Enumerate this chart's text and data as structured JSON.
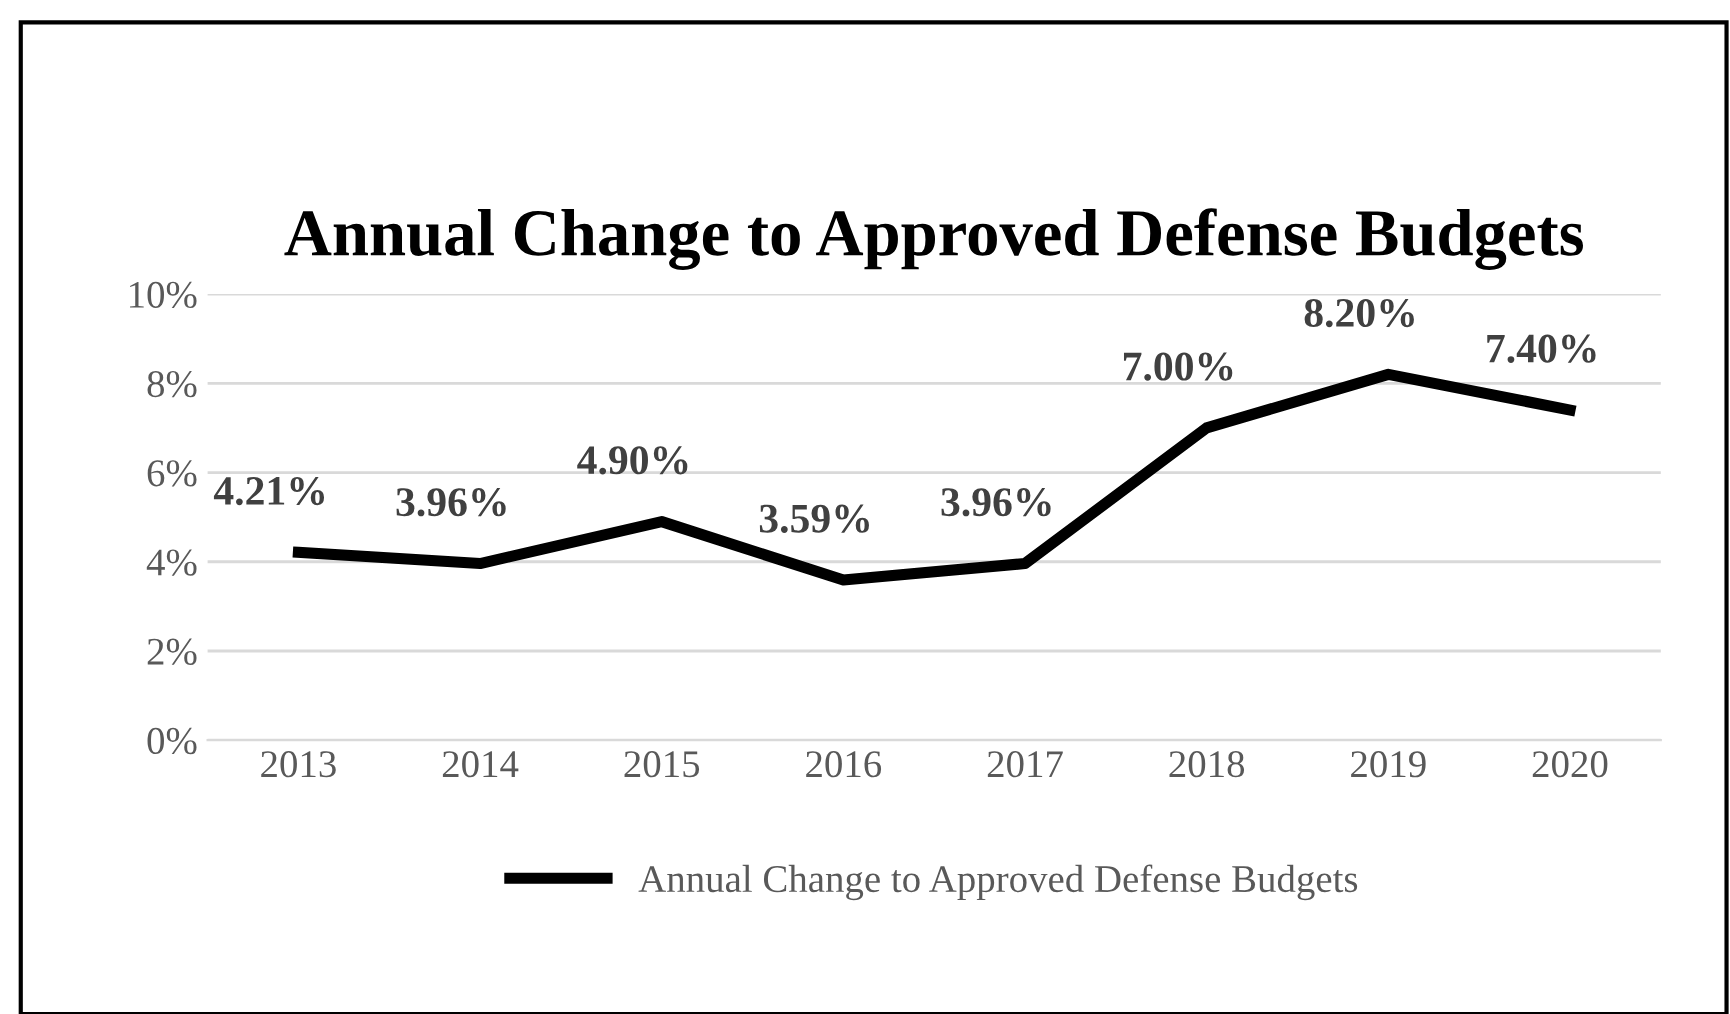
{
  "chart_data": {
    "type": "line",
    "title": "Annual Change to Approved Defense Budgets",
    "categories": [
      "2013",
      "2014",
      "2015",
      "2016",
      "2017",
      "2018",
      "2019",
      "2020"
    ],
    "series": [
      {
        "name": "Annual Change to Approved Defense Budgets",
        "color": "#000000",
        "values": [
          4.21,
          3.96,
          4.9,
          3.59,
          3.96,
          7.0,
          8.2,
          7.4
        ],
        "value_labels": [
          "4.21%",
          "3.96%",
          "4.90%",
          "3.59%",
          "3.96%",
          "7.00%",
          "8.20%",
          "7.40%"
        ]
      }
    ],
    "ylim": [
      0,
      10
    ],
    "yticks": [
      {
        "value": 0,
        "label": "0%"
      },
      {
        "value": 2,
        "label": "2%"
      },
      {
        "value": 4,
        "label": "4%"
      },
      {
        "value": 6,
        "label": "6%"
      },
      {
        "value": 8,
        "label": "8%"
      },
      {
        "value": 10,
        "label": "10%"
      }
    ],
    "grid": "y",
    "legend": "bottom",
    "marker": "none",
    "line_style": "solid"
  }
}
